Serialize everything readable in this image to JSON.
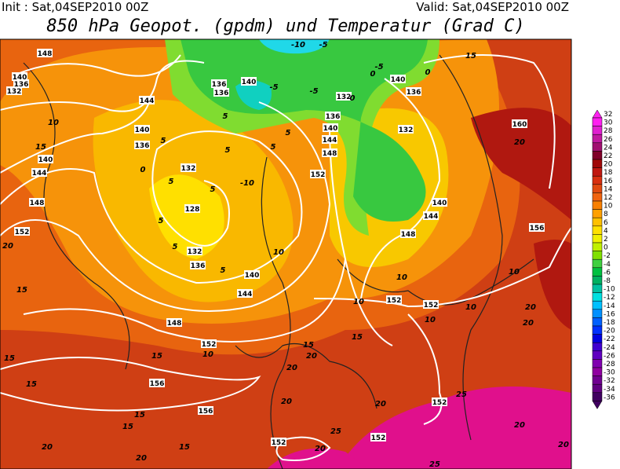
{
  "header": {
    "init": "Init : Sat,04SEP2010 00Z",
    "valid": "Valid: Sat,04SEP2010 00Z",
    "title": "850 hPa Geopot. (gpdm) und Temperatur (Grad C)"
  },
  "colorbar": {
    "levels": [
      32,
      30,
      28,
      26,
      24,
      22,
      20,
      18,
      16,
      14,
      12,
      10,
      8,
      6,
      4,
      2,
      0,
      -2,
      -4,
      -6,
      -8,
      -10,
      -12,
      -14,
      -16,
      -18,
      -20,
      -22,
      -24,
      -26,
      -28,
      -30,
      -32,
      -34,
      -36
    ],
    "colors": [
      "#ff20f0",
      "#e020d0",
      "#c01aa0",
      "#a01070",
      "#800028",
      "#a00808",
      "#c01810",
      "#d83010",
      "#e04a10",
      "#f06410",
      "#f88000",
      "#ffa000",
      "#ffc000",
      "#ffe000",
      "#f0f000",
      "#c0f000",
      "#80e000",
      "#40d040",
      "#00c040",
      "#00b060",
      "#00c0a0",
      "#00e0e0",
      "#00c0ff",
      "#0090ff",
      "#0060ff",
      "#0030ff",
      "#0000e0",
      "#4000d0",
      "#6000c0",
      "#8000b0",
      "#9000a0",
      "#700090",
      "#600080",
      "#400060"
    ]
  },
  "geopotential_labels": [
    148,
    140,
    136,
    132,
    144,
    140,
    136,
    140,
    144,
    132,
    128,
    132,
    136,
    140,
    144,
    148,
    152,
    156,
    156,
    152,
    148,
    136,
    140,
    136,
    132,
    136,
    140,
    144,
    148,
    152,
    140,
    136,
    132,
    140,
    144,
    148,
    152,
    152,
    152,
    152,
    152,
    156,
    160
  ],
  "temperature_labels": [
    15,
    20,
    10,
    15,
    20,
    15,
    15,
    15,
    15,
    15,
    20,
    20,
    15,
    20,
    20,
    20,
    15,
    15,
    10,
    15,
    10,
    10,
    10,
    10,
    10,
    20,
    20,
    20,
    25,
    25,
    25,
    20,
    20,
    20,
    -5,
    -5,
    -5,
    0,
    0,
    5,
    5,
    5,
    5,
    5,
    5,
    5,
    5,
    5,
    5,
    10,
    -10,
    -10,
    -5,
    0,
    0
  ]
}
